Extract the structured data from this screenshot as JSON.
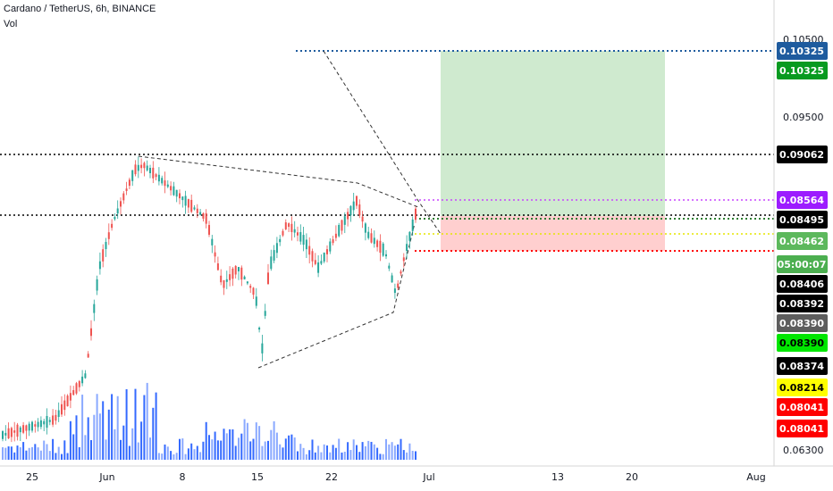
{
  "header": {
    "title": "Cardano / TetherUS, 6h, BINANCE",
    "volume_label": "Vol"
  },
  "price_axis": {
    "ticks": [
      "0.10500",
      "0.09500",
      "0.06300"
    ]
  },
  "time_axis": {
    "ticks": [
      "25",
      "Jun",
      "8",
      "15",
      "22",
      "Jul",
      "13",
      "20",
      "Aug"
    ]
  },
  "price_tags": [
    {
      "text": "0.10325",
      "bg": "#1e5b9e",
      "fg": "#ffffff"
    },
    {
      "text": "0.10325",
      "bg": "#089a20",
      "fg": "#ffffff"
    },
    {
      "text": "0.09062",
      "bg": "#000000",
      "fg": "#ffffff"
    },
    {
      "text": "0.08564",
      "bg": "#9c1cff",
      "fg": "#ffffff"
    },
    {
      "text": "0.08495",
      "bg": "#000000",
      "fg": "#ffffff"
    },
    {
      "text": "0.08462",
      "bg": "#5cb85c",
      "fg": "#ffffff"
    },
    {
      "text": "05:00:07",
      "bg": "#4caf50",
      "fg": "#ffffff"
    },
    {
      "text": "0.08406",
      "bg": "#000000",
      "fg": "#ffffff"
    },
    {
      "text": "0.08392",
      "bg": "#000000",
      "fg": "#ffffff"
    },
    {
      "text": "0.08390",
      "bg": "#5d5d5d",
      "fg": "#ffffff"
    },
    {
      "text": "0.08390",
      "bg": "#00e600",
      "fg": "#000000"
    },
    {
      "text": "0.08374",
      "bg": "#000000",
      "fg": "#ffffff"
    },
    {
      "text": "0.08214",
      "bg": "#ffff00",
      "fg": "#000000"
    },
    {
      "text": "0.08041",
      "bg": "#ff0000",
      "fg": "#ffffff"
    },
    {
      "text": "0.08041",
      "bg": "#ff0000",
      "fg": "#ffffff"
    }
  ],
  "colors": {
    "up_candle": "#26a69a",
    "down_candle": "#ef5350",
    "volume_bar": "#2962ff",
    "profit_zone": "#c8e6c9",
    "loss_zone": "#ffcdd2"
  }
}
